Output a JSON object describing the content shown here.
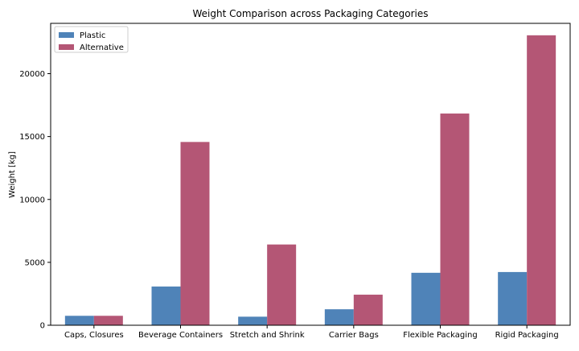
{
  "chart_data": {
    "type": "bar",
    "title": "Weight Comparison across Packaging Categories",
    "xlabel": "",
    "ylabel": "Weight [kg]",
    "categories": [
      "Caps, Closures",
      "Beverage Containers",
      "Stretch and Shrink",
      "Carrier Bags",
      "Flexible Packaging",
      "Rigid Packaging"
    ],
    "series": [
      {
        "name": "Plastic",
        "color": "#4f83b8",
        "values": [
          750,
          3080,
          680,
          1270,
          4170,
          4230
        ]
      },
      {
        "name": "Alternative",
        "color": "#b45675",
        "values": [
          750,
          14570,
          6420,
          2430,
          16830,
          23050
        ]
      }
    ],
    "ylim": [
      0,
      24000
    ],
    "yticks": [
      0,
      5000,
      10000,
      15000,
      20000
    ],
    "grid": false,
    "legend_position": "top-left"
  }
}
